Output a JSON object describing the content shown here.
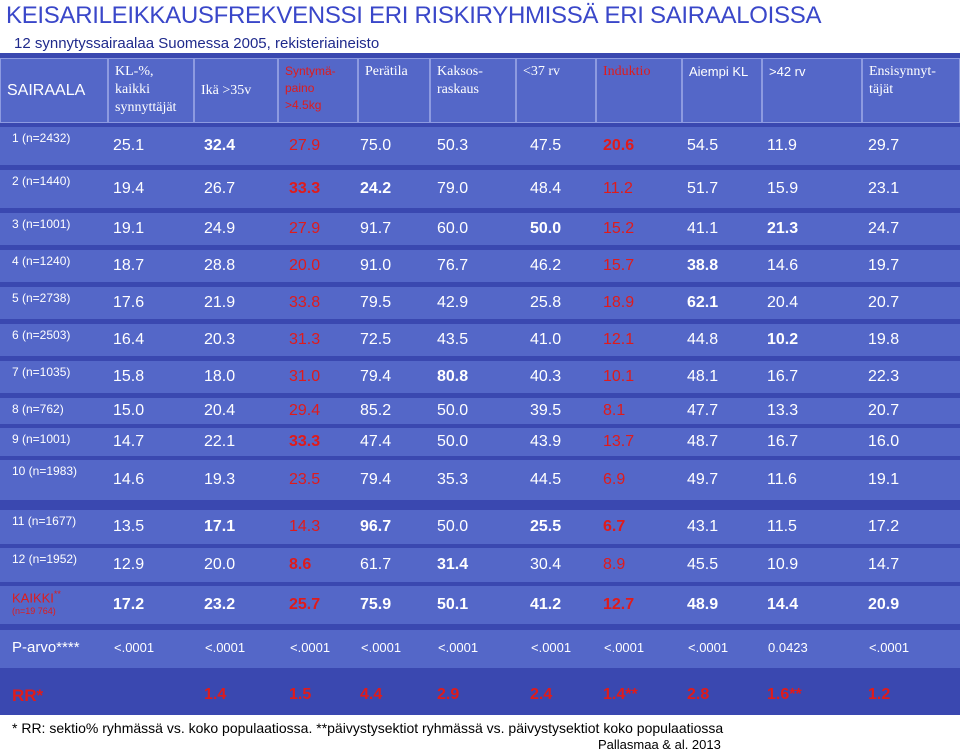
{
  "title": "KEISARILEIKKAUSFREKVENSSI ERI RISKIRYHMISSÄ ERI SAIRAALOISSA",
  "subtitle": "12 synnytyssairaalaa Suomessa 2005, rekisteriaineisto",
  "header": {
    "sairaala": "SAIRAALA",
    "kl": [
      "KL-%,",
      "kaikki",
      "synnyttäjät"
    ],
    "ika": "Ikä >35v",
    "syntymapaino": [
      "Syntymä-",
      "paino",
      ">4.5kg"
    ],
    "peratila": "Perätila",
    "kaksos": [
      "Kaksos-",
      "raskaus"
    ],
    "rv37": "<37 rv",
    "induktio": "Induktio",
    "aiempi": "Aiempi  KL",
    "rv42": ">42 rv",
    "ensisynnyttajat": [
      "Ensisynnyt-",
      "täjät"
    ]
  },
  "rows": [
    {
      "label": "1  (n=2432)",
      "values": [
        "25.1",
        "32.4",
        "27.9",
        "75.0",
        "50.3",
        "47.5",
        "20.6",
        "54.5",
        "11.9",
        "29.7"
      ]
    },
    {
      "label": "2  (n=1440)",
      "values": [
        "19.4",
        "26.7",
        "33.3",
        "24.2",
        "79.0",
        "48.4",
        "11.2",
        "51.7",
        "15.9",
        "23.1"
      ]
    },
    {
      "label": "3  (n=1001)",
      "values": [
        "19.1",
        "24.9",
        "27.9",
        "91.7",
        "60.0",
        "50.0",
        "15.2",
        "41.1",
        "21.3",
        "24.7"
      ]
    },
    {
      "label": "4  (n=1240)",
      "values": [
        "18.7",
        "28.8",
        "20.0",
        "91.0",
        "76.7",
        "46.2",
        "15.7",
        "38.8",
        "14.6",
        "19.7"
      ]
    },
    {
      "label": "5  (n=2738)",
      "values": [
        "17.6",
        "21.9",
        "33.8",
        "79.5",
        "42.9",
        "25.8",
        "18.9",
        "62.1",
        "20.4",
        "20.7"
      ]
    },
    {
      "label": "6  (n=2503)",
      "values": [
        "16.4",
        "20.3",
        "31.3",
        "72.5",
        "43.5",
        "41.0",
        "12.1",
        "44.8",
        "10.2",
        "19.8"
      ]
    },
    {
      "label": "7  (n=1035)",
      "values": [
        "15.8",
        "18.0",
        "31.0",
        "79.4",
        "80.8",
        "40.3",
        "10.1",
        "48.1",
        "16.7",
        "22.3"
      ]
    },
    {
      "label": "8   (n=762)",
      "values": [
        "15.0",
        "20.4",
        "29.4",
        "85.2",
        "50.0",
        "39.5",
        "8.1",
        "47.7",
        "13.3",
        "20.7"
      ]
    },
    {
      "label": "9   (n=1001)",
      "values": [
        "14.7",
        "22.1",
        "33.3",
        "47.4",
        "50.0",
        "43.9",
        "13.7",
        "48.7",
        "16.7",
        "16.0"
      ]
    },
    {
      "label": "10  (n=1983)",
      "values": [
        "14.6",
        "19.3",
        "23.5",
        "79.4",
        "35.3",
        "44.5",
        "6.9",
        "49.7",
        "11.6",
        "19.1"
      ]
    },
    {
      "label": "11   (n=1677)",
      "values": [
        "13.5",
        "17.1",
        "14.3",
        "96.7",
        "50.0",
        "25.5",
        "6.7",
        "43.1",
        "11.5",
        "17.2"
      ]
    },
    {
      "label": "12   (n=1952)",
      "values": [
        "12.9",
        "20.0",
        "8.6",
        "61.7",
        "31.4",
        "30.4",
        "8.9",
        "45.5",
        "10.9",
        "14.7"
      ]
    }
  ],
  "kaikki": {
    "label": "KAIKKI",
    "label_suffix": "**",
    "sub": "(n=19 764)",
    "values": [
      "17.2",
      "23.2",
      "25.7",
      "75.9",
      "50.1",
      "41.2",
      "12.7",
      "48.9",
      "14.4",
      "20.9"
    ]
  },
  "pvalue": {
    "label": "P-arvo****",
    "values": [
      "<.0001",
      "<.0001",
      "<.0001",
      "<.0001",
      "<.0001",
      "<.0001",
      "<.0001",
      "<.0001",
      "0.0423",
      "<.0001"
    ]
  },
  "rr": {
    "label": "RR*",
    "values": [
      "1.4",
      "1.5",
      "4.4",
      "2.9",
      "2.4",
      "1.4**",
      "2.8",
      "1.6**",
      "1.2"
    ]
  },
  "footnote": "* RR: sektio% ryhmässä vs. koko populaatiossa.   **päivystysektiot  ryhmässä vs. päivystysektiot koko populaatiossa",
  "citation": "Pallasmaa & al. 2013",
  "colors": {
    "accent_red": "#e01b1b",
    "title_blue": "#3a47c9",
    "cell_bg": "#5467c8",
    "grid_bg": "#3a48b0"
  }
}
